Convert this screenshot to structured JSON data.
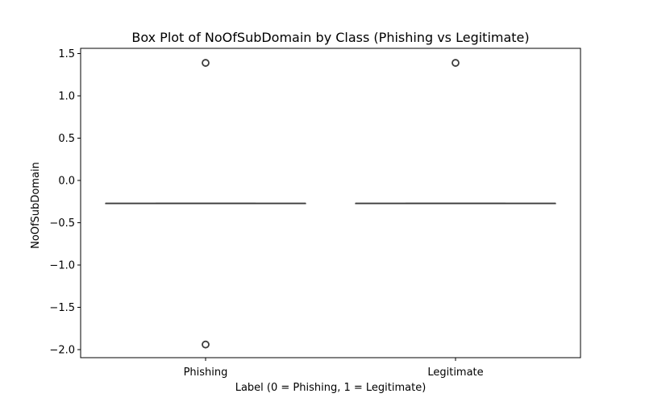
{
  "chart_data": {
    "type": "box",
    "title": "Box Plot of NoOfSubDomain by Class (Phishing vs Legitimate)",
    "xlabel": "Label (0 = Phishing, 1 = Legitimate)",
    "ylabel": "NoOfSubDomain",
    "categories": [
      "Phishing",
      "Legitimate"
    ],
    "ylim": [
      -2.1,
      1.55
    ],
    "yticks": [
      1.5,
      1.0,
      0.5,
      0.0,
      -0.5,
      -1.0,
      -1.5,
      -2.0
    ],
    "ytick_labels": [
      "1.5",
      "1.0",
      "0.5",
      "0.0",
      "−0.5",
      "−1.0",
      "−1.5",
      "−2.0"
    ],
    "grid": false,
    "series": [
      {
        "category": "Phishing",
        "min": -0.27,
        "q1": -0.27,
        "median": -0.27,
        "q3": -0.27,
        "max": -0.27,
        "outliers": [
          1.39,
          -1.94
        ]
      },
      {
        "category": "Legitimate",
        "min": -0.27,
        "q1": -0.27,
        "median": -0.27,
        "q3": -0.27,
        "max": -0.27,
        "outliers": [
          1.39
        ]
      }
    ]
  }
}
